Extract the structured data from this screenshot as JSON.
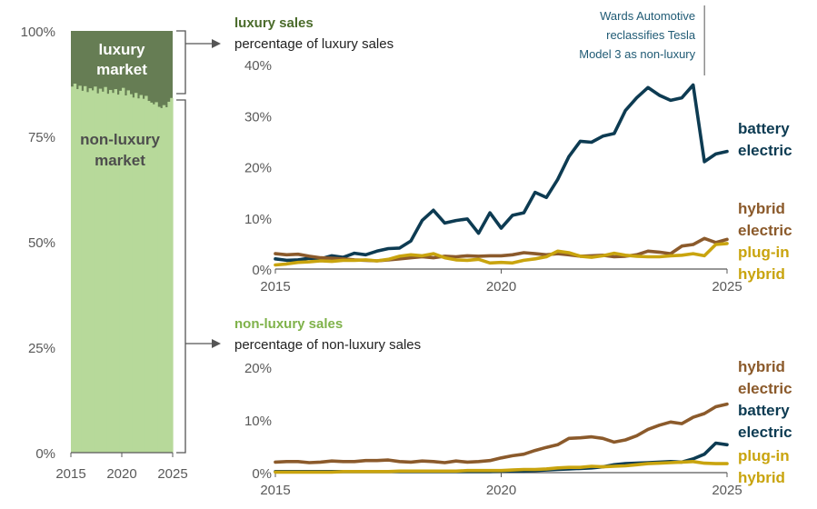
{
  "colors": {
    "luxury_bar": "#667d54",
    "nonluxury_bar": "#b7d99a",
    "battery_electric": "#0d3b52",
    "hybrid_electric": "#8b5a2b",
    "plug_in_hybrid": "#c9a40e",
    "axis": "#595959",
    "connector": "#555555"
  },
  "chart_data": [
    {
      "type": "area",
      "id": "market-share",
      "series": [
        {
          "name": "luxury market",
          "label_lines": [
            "luxury",
            "market"
          ]
        },
        {
          "name": "non-luxury market",
          "label_lines": [
            "non-luxury",
            "market"
          ]
        }
      ],
      "x": [
        2015.0,
        2015.25,
        2015.5,
        2015.75,
        2016.0,
        2016.25,
        2016.5,
        2016.75,
        2017.0,
        2017.25,
        2017.5,
        2017.75,
        2018.0,
        2018.25,
        2018.5,
        2018.75,
        2019.0,
        2019.25,
        2019.5,
        2019.75,
        2020.0,
        2020.25,
        2020.5,
        2020.75,
        2021.0,
        2021.25,
        2021.5,
        2021.75,
        2022.0,
        2022.25,
        2022.5,
        2022.75,
        2023.0,
        2023.25,
        2023.5,
        2023.75,
        2024.0,
        2024.25,
        2024.5,
        2024.75
      ],
      "nonluxury_share": [
        86.8,
        87.5,
        86.2,
        87.0,
        85.8,
        86.9,
        85.5,
        86.4,
        85.9,
        86.8,
        85.2,
        86.3,
        85.6,
        86.7,
        85.1,
        86.0,
        85.3,
        86.2,
        84.9,
        85.8,
        86.5,
        84.7,
        85.9,
        85.0,
        84.2,
        85.3,
        84.0,
        84.8,
        83.9,
        84.6,
        83.4,
        83.0,
        82.6,
        83.1,
        82.0,
        81.7,
        82.4,
        81.9,
        83.2,
        84.1
      ],
      "ylim": [
        0,
        100
      ],
      "yticks": [
        "0%",
        "25%",
        "50%",
        "75%",
        "100%"
      ],
      "yticks_values": [
        0,
        25,
        50,
        75,
        100
      ],
      "xticks": [
        "2015",
        "2020",
        "2025"
      ],
      "xticks_values": [
        2015,
        2020,
        2025
      ]
    },
    {
      "type": "line",
      "id": "luxury-sales",
      "title": "luxury sales",
      "subtitle": "percentage of luxury sales",
      "ylim": [
        0,
        40
      ],
      "yticks": [
        "0%",
        "10%",
        "20%",
        "30%",
        "40%"
      ],
      "yticks_values": [
        0,
        10,
        20,
        30,
        40
      ],
      "xticks": [
        "2015",
        "2020",
        "2025"
      ],
      "xticks_values": [
        2015,
        2020,
        2025
      ],
      "x": [
        2015.0,
        2015.25,
        2015.5,
        2015.75,
        2016.0,
        2016.25,
        2016.5,
        2016.75,
        2017.0,
        2017.25,
        2017.5,
        2017.75,
        2018.0,
        2018.25,
        2018.5,
        2018.75,
        2019.0,
        2019.25,
        2019.5,
        2019.75,
        2020.0,
        2020.25,
        2020.5,
        2020.75,
        2021.0,
        2021.25,
        2021.5,
        2021.75,
        2022.0,
        2022.25,
        2022.5,
        2022.75,
        2023.0,
        2023.25,
        2023.5,
        2023.75,
        2024.0,
        2024.25,
        2024.5,
        2024.75,
        2025.0
      ],
      "series": [
        {
          "name": "battery electric",
          "label_lines": [
            "battery",
            "electric"
          ],
          "color_key": "battery_electric",
          "values": [
            2.0,
            1.7,
            1.8,
            2.1,
            2.0,
            2.6,
            2.3,
            3.1,
            2.8,
            3.5,
            4.0,
            4.1,
            5.5,
            9.5,
            11.5,
            9.0,
            9.5,
            9.8,
            7.0,
            11.0,
            8.0,
            10.5,
            11.0,
            15.0,
            14.0,
            17.5,
            22.0,
            25.0,
            24.8,
            26.0,
            26.5,
            31.0,
            33.5,
            35.5,
            34.0,
            33.0,
            33.5,
            36.0,
            21.0,
            22.5,
            23.0
          ]
        },
        {
          "name": "hybrid electric",
          "label_lines": [
            "hybrid",
            "electric"
          ],
          "color_key": "hybrid_electric",
          "values": [
            3.0,
            2.8,
            2.9,
            2.5,
            2.2,
            2.1,
            2.0,
            1.8,
            1.7,
            1.6,
            1.8,
            2.0,
            2.2,
            2.4,
            2.2,
            2.5,
            2.4,
            2.6,
            2.5,
            2.6,
            2.6,
            2.8,
            3.2,
            3.0,
            2.8,
            3.0,
            2.8,
            2.5,
            2.6,
            2.7,
            2.4,
            2.5,
            2.8,
            3.5,
            3.3,
            3.0,
            4.5,
            4.8,
            6.0,
            5.2,
            5.8
          ]
        },
        {
          "name": "plug-in hybrid",
          "label_lines": [
            "plug-in",
            "hybrid"
          ],
          "color_key": "plug_in_hybrid",
          "values": [
            0.8,
            1.0,
            1.3,
            1.4,
            1.6,
            1.5,
            1.7,
            1.7,
            1.8,
            1.6,
            1.9,
            2.5,
            2.8,
            2.6,
            3.0,
            2.2,
            1.8,
            1.7,
            1.9,
            1.2,
            1.3,
            1.2,
            1.7,
            2.0,
            2.4,
            3.5,
            3.2,
            2.5,
            2.3,
            2.6,
            3.1,
            2.7,
            2.5,
            2.4,
            2.4,
            2.6,
            2.7,
            3.0,
            2.6,
            4.8,
            5.0
          ]
        }
      ],
      "annotation": {
        "lines": [
          "Wards Automotive",
          "reclassifies Tesla",
          "Model 3 as non-luxury"
        ],
        "x": 2024.5
      }
    },
    {
      "type": "line",
      "id": "nonluxury-sales",
      "title": "non-luxury sales",
      "subtitle": "percentage of non-luxury sales",
      "ylim": [
        0,
        20
      ],
      "yticks": [
        "0%",
        "10%",
        "20%"
      ],
      "yticks_values": [
        0,
        10,
        20
      ],
      "xticks": [
        "2015",
        "2020",
        "2025"
      ],
      "xticks_values": [
        2015,
        2020,
        2025
      ],
      "x": [
        2015.0,
        2015.25,
        2015.5,
        2015.75,
        2016.0,
        2016.25,
        2016.5,
        2016.75,
        2017.0,
        2017.25,
        2017.5,
        2017.75,
        2018.0,
        2018.25,
        2018.5,
        2018.75,
        2019.0,
        2019.25,
        2019.5,
        2019.75,
        2020.0,
        2020.25,
        2020.5,
        2020.75,
        2021.0,
        2021.25,
        2021.5,
        2021.75,
        2022.0,
        2022.25,
        2022.5,
        2022.75,
        2023.0,
        2023.25,
        2023.5,
        2023.75,
        2024.0,
        2024.25,
        2024.5,
        2024.75,
        2025.0
      ],
      "series": [
        {
          "name": "hybrid electric",
          "label_lines": [
            "hybrid",
            "electric"
          ],
          "color_key": "hybrid_electric",
          "values": [
            2.0,
            2.1,
            2.1,
            1.9,
            2.0,
            2.2,
            2.1,
            2.1,
            2.3,
            2.3,
            2.4,
            2.1,
            2.0,
            2.2,
            2.1,
            1.9,
            2.2,
            2.0,
            2.1,
            2.3,
            2.8,
            3.2,
            3.5,
            4.2,
            4.8,
            5.3,
            6.5,
            6.6,
            6.8,
            6.5,
            5.8,
            6.2,
            7.0,
            8.2,
            9.0,
            9.6,
            9.3,
            10.5,
            11.2,
            12.5,
            13.0
          ]
        },
        {
          "name": "battery electric",
          "label_lines": [
            "battery",
            "electric"
          ],
          "color_key": "battery_electric",
          "values": [
            0.2,
            0.2,
            0.2,
            0.2,
            0.2,
            0.2,
            0.2,
            0.2,
            0.2,
            0.2,
            0.2,
            0.2,
            0.2,
            0.2,
            0.2,
            0.2,
            0.2,
            0.2,
            0.2,
            0.2,
            0.3,
            0.3,
            0.3,
            0.4,
            0.5,
            0.6,
            0.7,
            0.8,
            0.9,
            1.1,
            1.5,
            1.7,
            1.8,
            1.9,
            2.0,
            2.1,
            2.0,
            2.6,
            3.5,
            5.6,
            5.3
          ]
        },
        {
          "name": "plug-in hybrid",
          "label_lines": [
            "plug-in",
            "hybrid"
          ],
          "color_key": "plug_in_hybrid",
          "values": [
            0.1,
            0.1,
            0.1,
            0.1,
            0.1,
            0.1,
            0.2,
            0.2,
            0.2,
            0.2,
            0.2,
            0.3,
            0.3,
            0.3,
            0.3,
            0.3,
            0.3,
            0.4,
            0.4,
            0.4,
            0.4,
            0.5,
            0.6,
            0.6,
            0.7,
            0.9,
            1.0,
            1.0,
            1.2,
            1.1,
            1.2,
            1.3,
            1.5,
            1.7,
            1.8,
            1.9,
            2.0,
            2.1,
            1.8,
            1.7,
            1.7
          ]
        }
      ]
    }
  ]
}
